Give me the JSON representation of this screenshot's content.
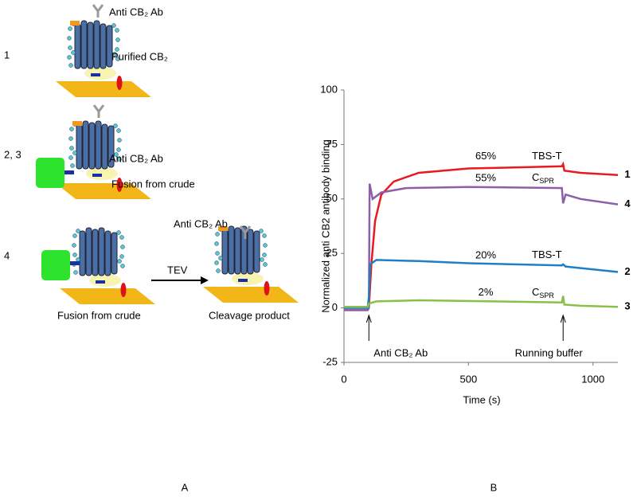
{
  "panel_a": {
    "rows": [
      {
        "number": "1",
        "antibody": "Anti CB₂ Ab",
        "label": "Purified CB₂"
      },
      {
        "number": "2, 3",
        "antibody": "Anti CB₂ Ab",
        "label": "Fusion from crude"
      },
      {
        "number": "4",
        "left_label": "Fusion from crude",
        "arrow_label": "TEV",
        "antibody": "Anti CB₂ Ab",
        "right_label": "Cleavage product"
      }
    ],
    "panel_label": "A"
  },
  "chart_data": {
    "type": "line",
    "ylabel": "Normalized anti CB2 antibody binding",
    "xlabel": "Time (s)",
    "panel_label": "B",
    "xlim": [
      0,
      1100
    ],
    "xticks": [
      0,
      500,
      1000
    ],
    "ylim": [
      -25,
      100
    ],
    "yticks": [
      -25,
      0,
      25,
      50,
      75,
      100
    ],
    "series": [
      {
        "name": "1",
        "color": "#e8191f",
        "percent_label": "65%",
        "buffer_label": {
          "main": "TBS-T"
        },
        "x": [
          0,
          95,
          100,
          110,
          125,
          150,
          200,
          300,
          500,
          700,
          875,
          880,
          885,
          950,
          1100
        ],
        "values": [
          -1,
          -1,
          0,
          20,
          40,
          52,
          58,
          62,
          64,
          64.5,
          65,
          66,
          63,
          62,
          61
        ]
      },
      {
        "name": "4",
        "color": "#8c5fa8",
        "percent_label": "55%",
        "buffer_label": {
          "main": "C",
          "sub": "SPR"
        },
        "x": [
          0,
          95,
          100,
          103,
          115,
          150,
          250,
          500,
          875,
          880,
          890,
          950,
          1100
        ],
        "values": [
          -1,
          -1,
          0,
          57,
          50,
          53,
          55,
          55.5,
          55,
          48,
          52,
          50,
          47.5
        ]
      },
      {
        "name": "2",
        "color": "#1f7fc6",
        "percent_label": "20%",
        "buffer_label": {
          "main": "TBS-T"
        },
        "x": [
          0,
          95,
          100,
          105,
          130,
          300,
          500,
          875,
          880,
          890,
          1100
        ],
        "values": [
          0,
          0,
          5,
          20,
          22,
          21.5,
          20.5,
          19.5,
          20,
          19,
          16.5
        ]
      },
      {
        "name": "3",
        "color": "#8bbf4a",
        "percent_label": "2%",
        "buffer_label": {
          "main": "C",
          "sub": "SPR"
        },
        "x": [
          0,
          95,
          100,
          130,
          300,
          600,
          875,
          880,
          885,
          950,
          1100
        ],
        "values": [
          0.5,
          0.5,
          2,
          3,
          3.5,
          3,
          2.5,
          5.5,
          1.5,
          1,
          0.5
        ]
      }
    ],
    "annotations": [
      {
        "text": "Anti CB₂ Ab",
        "x": 100
      },
      {
        "text": "Running buffer",
        "x": 880
      }
    ]
  }
}
